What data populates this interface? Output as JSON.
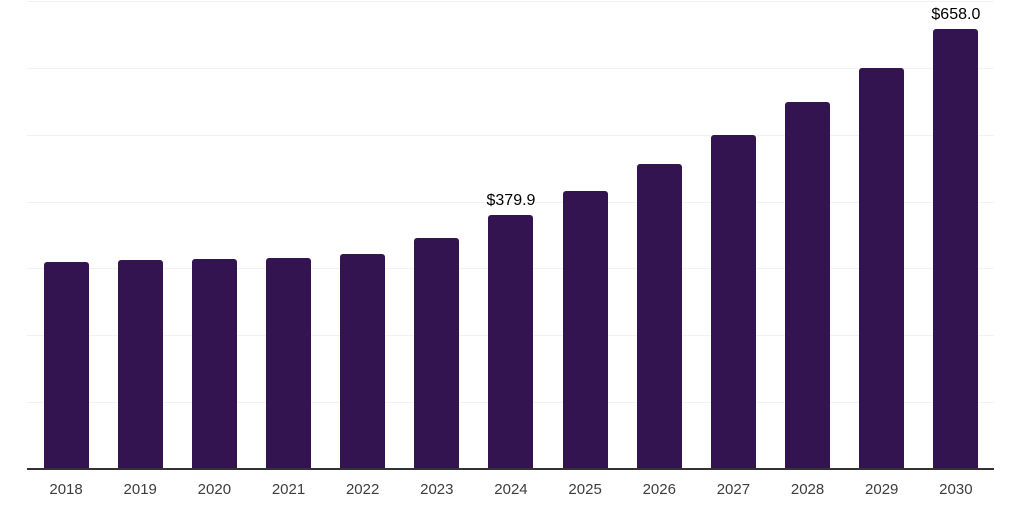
{
  "chart_data": {
    "type": "bar",
    "title": "",
    "xlabel": "",
    "ylabel": "",
    "categories": [
      "2018",
      "2019",
      "2020",
      "2021",
      "2022",
      "2023",
      "2024",
      "2025",
      "2026",
      "2027",
      "2028",
      "2029",
      "2030"
    ],
    "values": [
      310.0,
      313.0,
      314.5,
      316.0,
      321.0,
      346.0,
      379.9,
      416.4,
      456.4,
      500.2,
      548.2,
      600.3,
      658.0
    ],
    "data_labels": [
      {
        "category": "2024",
        "text": "$379.9"
      },
      {
        "category": "2030",
        "text": "$658.0"
      }
    ],
    "ylim": [
      0,
      700
    ],
    "gridline_step": 100,
    "grid": "horizontal",
    "legend": "none",
    "y_axis_labels_visible": false
  },
  "colors": {
    "bar": "#341450",
    "axis_line": "#333333",
    "gridline": "#f2f2f2",
    "data_label": "#000000",
    "tick_label": "#3d3d3d",
    "background": "#ffffff"
  }
}
